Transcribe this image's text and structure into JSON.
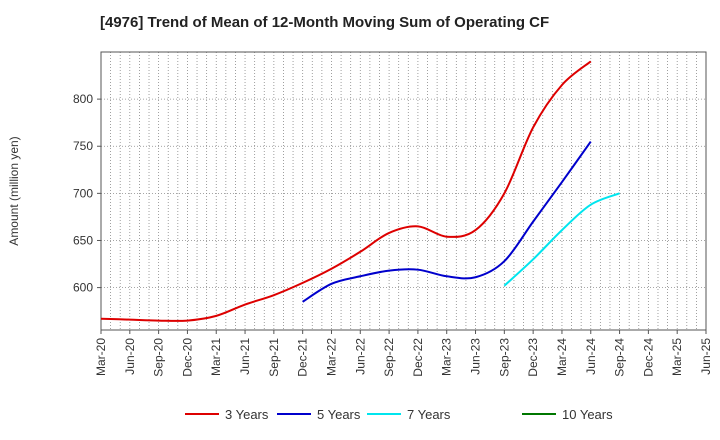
{
  "chart_data": {
    "type": "line",
    "title": "[4976]  Trend of Mean of 12-Month Moving Sum of Operating CF",
    "xlabel": "",
    "ylabel": "Amount (million yen)",
    "ylim": [
      555,
      850
    ],
    "yticks": [
      600,
      650,
      700,
      750,
      800
    ],
    "x": [
      "Mar-20",
      "Jun-20",
      "Sep-20",
      "Dec-20",
      "Mar-21",
      "Jun-21",
      "Sep-21",
      "Dec-21",
      "Mar-22",
      "Jun-22",
      "Sep-22",
      "Dec-22",
      "Mar-23",
      "Jun-23",
      "Sep-23",
      "Dec-23",
      "Mar-24",
      "Jun-24",
      "Sep-24",
      "Dec-24",
      "Mar-25",
      "Jun-25"
    ],
    "grid": true,
    "legend_position": "bottom",
    "series": [
      {
        "name": "3 Years",
        "color": "#dd0000",
        "values": [
          567,
          566,
          565,
          565,
          570,
          582,
          592,
          605,
          620,
          638,
          658,
          665,
          654,
          661,
          700,
          770,
          815,
          840,
          null,
          null,
          null,
          null
        ]
      },
      {
        "name": "5 Years",
        "color": "#0000cc",
        "values": [
          null,
          null,
          null,
          null,
          null,
          null,
          null,
          585,
          604,
          612,
          618,
          619,
          612,
          611,
          628,
          670,
          712,
          755,
          null,
          null,
          null,
          null
        ]
      },
      {
        "name": "7 Years",
        "color": "#00e5ee",
        "values": [
          null,
          null,
          null,
          null,
          null,
          null,
          null,
          null,
          null,
          null,
          null,
          null,
          null,
          null,
          602,
          630,
          661,
          688,
          700,
          null,
          null,
          null
        ]
      },
      {
        "name": "10 Years",
        "color": "#007700",
        "values": [
          null,
          null,
          null,
          null,
          null,
          null,
          null,
          null,
          null,
          null,
          null,
          null,
          null,
          null,
          null,
          null,
          null,
          null,
          null,
          null,
          null,
          null
        ]
      }
    ]
  }
}
